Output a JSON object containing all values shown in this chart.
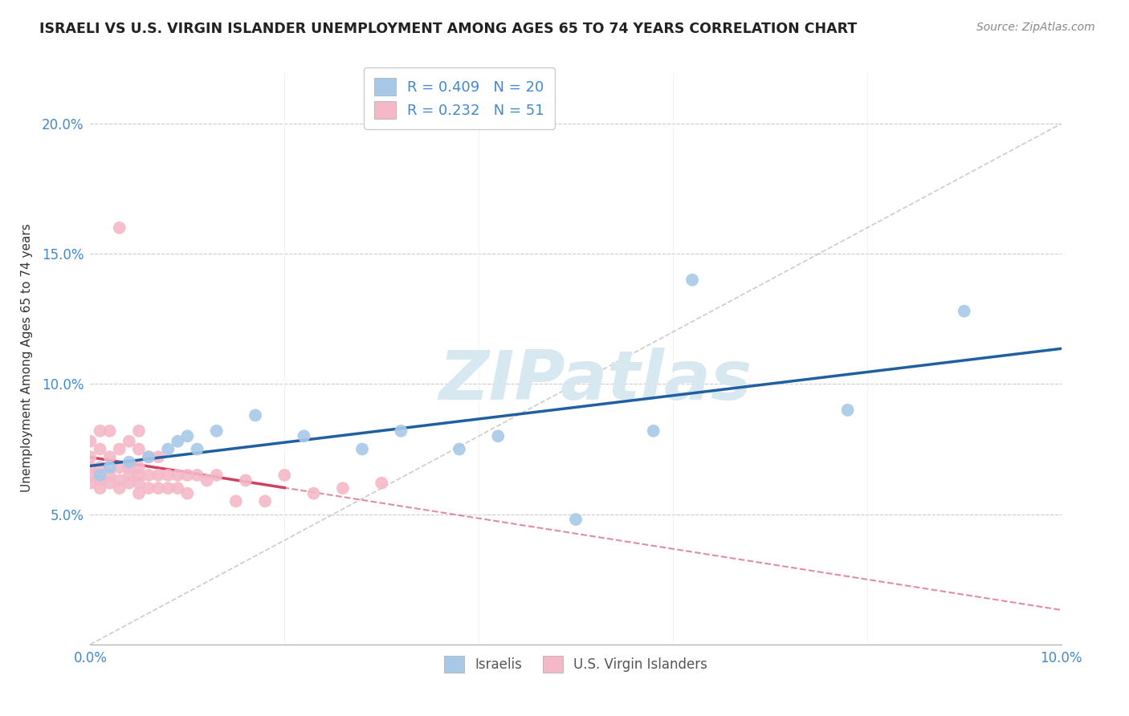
{
  "title": "ISRAELI VS U.S. VIRGIN ISLANDER UNEMPLOYMENT AMONG AGES 65 TO 74 YEARS CORRELATION CHART",
  "source": "Source: ZipAtlas.com",
  "ylabel": "Unemployment Among Ages 65 to 74 years",
  "xlim": [
    0.0,
    0.1
  ],
  "ylim": [
    0.0,
    0.22
  ],
  "xtick_vals": [
    0.0,
    0.02,
    0.04,
    0.06,
    0.08,
    0.1
  ],
  "xticklabels": [
    "0.0%",
    "",
    "",
    "",
    "",
    "10.0%"
  ],
  "ytick_vals": [
    0.0,
    0.05,
    0.1,
    0.15,
    0.2
  ],
  "yticklabels": [
    "",
    "5.0%",
    "10.0%",
    "15.0%",
    "20.0%"
  ],
  "israeli_color": "#a8c8e8",
  "virgin_color": "#f4b8c8",
  "israeli_line_color": "#2060a0",
  "virgin_line_color": "#d04060",
  "background_color": "#ffffff",
  "watermark_text": "ZIPatlas",
  "israeli_x": [
    0.001,
    0.002,
    0.004,
    0.006,
    0.008,
    0.009,
    0.01,
    0.011,
    0.013,
    0.017,
    0.022,
    0.028,
    0.032,
    0.038,
    0.042,
    0.05,
    0.058,
    0.062,
    0.078,
    0.09
  ],
  "israeli_y": [
    0.065,
    0.068,
    0.07,
    0.072,
    0.075,
    0.078,
    0.08,
    0.075,
    0.082,
    0.088,
    0.08,
    0.075,
    0.082,
    0.075,
    0.08,
    0.048,
    0.082,
    0.14,
    0.09,
    0.128
  ],
  "virgin_x": [
    0.0,
    0.0,
    0.0,
    0.0,
    0.0,
    0.001,
    0.001,
    0.001,
    0.001,
    0.001,
    0.002,
    0.002,
    0.002,
    0.002,
    0.003,
    0.003,
    0.003,
    0.003,
    0.003,
    0.004,
    0.004,
    0.004,
    0.004,
    0.005,
    0.005,
    0.005,
    0.005,
    0.005,
    0.005,
    0.006,
    0.006,
    0.006,
    0.007,
    0.007,
    0.007,
    0.008,
    0.008,
    0.009,
    0.009,
    0.01,
    0.01,
    0.011,
    0.012,
    0.013,
    0.015,
    0.016,
    0.018,
    0.02,
    0.023,
    0.026,
    0.03
  ],
  "virgin_y": [
    0.062,
    0.065,
    0.068,
    0.072,
    0.078,
    0.06,
    0.063,
    0.068,
    0.075,
    0.082,
    0.062,
    0.065,
    0.072,
    0.082,
    0.06,
    0.063,
    0.068,
    0.075,
    0.16,
    0.062,
    0.065,
    0.068,
    0.078,
    0.058,
    0.062,
    0.065,
    0.068,
    0.075,
    0.082,
    0.06,
    0.065,
    0.072,
    0.06,
    0.065,
    0.072,
    0.06,
    0.065,
    0.06,
    0.065,
    0.058,
    0.065,
    0.065,
    0.063,
    0.065,
    0.055,
    0.063,
    0.055,
    0.065,
    0.058,
    0.06,
    0.062
  ],
  "legend1_label": "R = 0.409   N = 20",
  "legend2_label": "R = 0.232   N = 51",
  "bottom_legend1": "Israelis",
  "bottom_legend2": "U.S. Virgin Islanders"
}
